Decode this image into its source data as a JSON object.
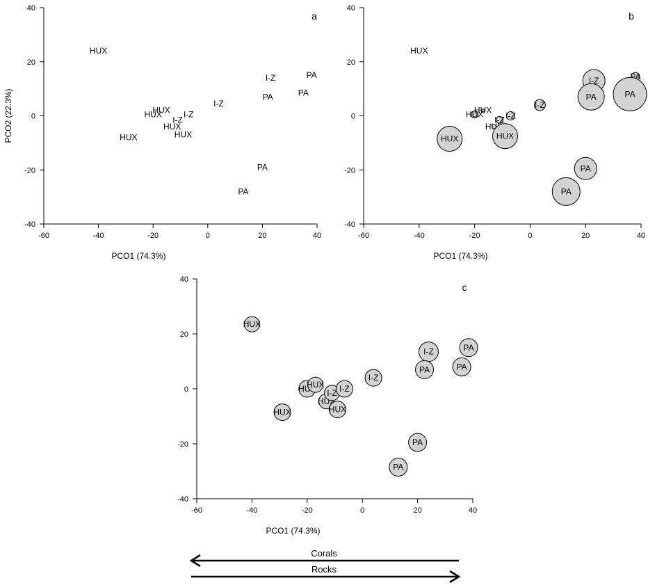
{
  "chart_data": [
    {
      "type": "scatter",
      "panel_label": "a",
      "marker": "label",
      "xlabel": "PCO1 (74.3%)",
      "ylabel": "PCO2 (22.3%)",
      "xlim": [
        -60,
        40
      ],
      "ylim": [
        -40,
        40
      ],
      "xticks": [
        -60,
        -40,
        -20,
        0,
        20,
        40
      ],
      "yticks": [
        -40,
        -20,
        0,
        20,
        40
      ],
      "points": [
        {
          "label": "HUX",
          "x": -40,
          "y": 24,
          "size": 0
        },
        {
          "label": "HUX",
          "x": -29,
          "y": -8,
          "size": 0
        },
        {
          "label": "HUX",
          "x": -20,
          "y": 0.5,
          "size": 0
        },
        {
          "label": "HUX",
          "x": -17,
          "y": 2,
          "size": 0
        },
        {
          "label": "HUX",
          "x": -13,
          "y": -4,
          "size": 0
        },
        {
          "label": "I-Z",
          "x": -11,
          "y": -1.5,
          "size": 0
        },
        {
          "label": "I-Z",
          "x": -7,
          "y": 0.5,
          "size": 0
        },
        {
          "label": "HUX",
          "x": -9,
          "y": -7,
          "size": 0
        },
        {
          "label": "I-Z",
          "x": 4,
          "y": 4.5,
          "size": 0
        },
        {
          "label": "I-Z",
          "x": 23,
          "y": 14,
          "size": 0
        },
        {
          "label": "PA",
          "x": 22,
          "y": 7,
          "size": 0
        },
        {
          "label": "PA",
          "x": 38,
          "y": 15,
          "size": 0
        },
        {
          "label": "PA",
          "x": 35,
          "y": 8.5,
          "size": 0
        },
        {
          "label": "PA",
          "x": 20,
          "y": -19,
          "size": 0
        },
        {
          "label": "PA",
          "x": 13,
          "y": -28,
          "size": 0
        }
      ]
    },
    {
      "type": "scatter",
      "panel_label": "b",
      "marker": "bubble",
      "xlabel": "PCO1 (74.3%)",
      "ylabel": "",
      "xlim": [
        -60,
        40
      ],
      "ylim": [
        -40,
        40
      ],
      "xticks": [
        -60,
        -40,
        -20,
        0,
        20,
        40
      ],
      "yticks": [
        -40,
        -20,
        0,
        20,
        40
      ],
      "points": [
        {
          "label": "HUX",
          "x": -40,
          "y": 24,
          "size": 0.5
        },
        {
          "label": "HUX",
          "x": -29,
          "y": -8.5,
          "size": 18
        },
        {
          "label": "HUX",
          "x": -20,
          "y": 0.5,
          "size": 5
        },
        {
          "label": "HUX",
          "x": -17,
          "y": 2,
          "size": 2
        },
        {
          "label": "HUX",
          "x": -13,
          "y": -4,
          "size": 3
        },
        {
          "label": "I-Z",
          "x": -11,
          "y": -1.5,
          "size": 5
        },
        {
          "label": "I-Z",
          "x": -7,
          "y": 0,
          "size": 6
        },
        {
          "label": "HUX",
          "x": -9,
          "y": -7.5,
          "size": 18
        },
        {
          "label": "I-Z",
          "x": 3.5,
          "y": 4,
          "size": 8
        },
        {
          "label": "I-Z",
          "x": 23,
          "y": 13,
          "size": 16
        },
        {
          "label": "PA",
          "x": 22,
          "y": 7,
          "size": 19
        },
        {
          "label": "PA",
          "x": 38,
          "y": 14.5,
          "size": 6
        },
        {
          "label": "PA",
          "x": 36,
          "y": 8,
          "size": 24
        },
        {
          "label": "PA",
          "x": 20,
          "y": -19.5,
          "size": 16
        },
        {
          "label": "PA",
          "x": 13,
          "y": -28,
          "size": 20
        }
      ]
    },
    {
      "type": "scatter",
      "panel_label": "c",
      "marker": "bubble",
      "xlabel": "PCO1 (74.3%)",
      "ylabel": "",
      "xlim": [
        -60,
        40
      ],
      "ylim": [
        -40,
        40
      ],
      "xticks": [
        -60,
        -40,
        -20,
        0,
        20,
        40
      ],
      "yticks": [
        -40,
        -20,
        0,
        20,
        40
      ],
      "points": [
        {
          "label": "HUX",
          "x": -40,
          "y": 23.5,
          "size": 11
        },
        {
          "label": "HUX",
          "x": -29,
          "y": -8.5,
          "size": 12
        },
        {
          "label": "HUX",
          "x": -20,
          "y": 0,
          "size": 12
        },
        {
          "label": "HUX",
          "x": -17,
          "y": 1.5,
          "size": 11
        },
        {
          "label": "HUX",
          "x": -13,
          "y": -4.5,
          "size": 11
        },
        {
          "label": "I-Z",
          "x": -11,
          "y": -1.5,
          "size": 11
        },
        {
          "label": "I-Z",
          "x": -6.5,
          "y": 0,
          "size": 12
        },
        {
          "label": "HUX",
          "x": -9,
          "y": -7.5,
          "size": 12
        },
        {
          "label": "I-Z",
          "x": 4,
          "y": 4,
          "size": 12
        },
        {
          "label": "I-Z",
          "x": 24,
          "y": 13.5,
          "size": 14
        },
        {
          "label": "PA",
          "x": 22.5,
          "y": 7,
          "size": 13
        },
        {
          "label": "PA",
          "x": 38.5,
          "y": 15,
          "size": 13
        },
        {
          "label": "PA",
          "x": 36,
          "y": 8,
          "size": 13
        },
        {
          "label": "PA",
          "x": 20,
          "y": -19.5,
          "size": 13
        },
        {
          "label": "PA",
          "x": 13,
          "y": -28.5,
          "size": 13
        }
      ]
    }
  ],
  "legend_arrows": [
    {
      "label": "Corals",
      "direction": "left"
    },
    {
      "label": "Rocks",
      "direction": "right"
    }
  ]
}
